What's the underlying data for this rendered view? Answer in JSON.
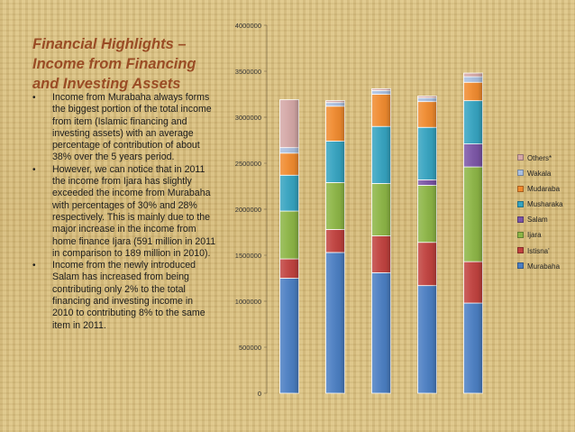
{
  "slide": {
    "title_lines": [
      "Financial Highlights –",
      "Income from Financing",
      "and Investing Assets"
    ],
    "bullets": [
      "Income from Murabaha always forms the biggest portion of the total income from item (Islamic financing and investing assets) with an average percentage of contribution of about 38% over the 5 years period.",
      "However, we can notice that in 2011 the income from Ijara has slightly exceeded the income from Murabaha with percentages of 30% and 28% respectively. This is mainly due to the major increase in the income from home finance Ijara (591 million in 2011 in comparison to 189 million in 2010).",
      "Income from the newly introduced Salam has increased from being contributing only 2% to the total financing and investing income in 2010 to contributing 8% to the same item in 2011."
    ],
    "bullet_symbol": "•"
  },
  "chart_data": {
    "type": "bar",
    "stacked": true,
    "title": "",
    "xlabel": "",
    "ylabel": "",
    "ylim": [
      0,
      4000000
    ],
    "yticks": [
      0,
      500000,
      1000000,
      1500000,
      2000000,
      2500000,
      3000000,
      3500000,
      4000000
    ],
    "ytick_labels": [
      "0",
      "500000",
      "1000000",
      "1500000",
      "2000000",
      "2500000",
      "3000000",
      "3500000",
      "4000000"
    ],
    "categories": [
      "",
      "",
      "",
      "",
      ""
    ],
    "legend_position": "right",
    "series": [
      {
        "name": "Murabaha",
        "color": "#4a7ec2",
        "values": [
          1250000,
          1530000,
          1310000,
          1170000,
          980000
        ]
      },
      {
        "name": "Istisna'",
        "color": "#c0413e",
        "values": [
          210000,
          250000,
          400000,
          470000,
          450000
        ]
      },
      {
        "name": "Ijara",
        "color": "#8cb545",
        "values": [
          520000,
          510000,
          570000,
          620000,
          1030000
        ]
      },
      {
        "name": "Salam",
        "color": "#7b55a6",
        "values": [
          0,
          0,
          0,
          60000,
          250000
        ]
      },
      {
        "name": "Musharaka",
        "color": "#35a3c0",
        "values": [
          390000,
          450000,
          620000,
          570000,
          470000
        ]
      },
      {
        "name": "Mudaraba",
        "color": "#f08a2e",
        "values": [
          240000,
          380000,
          350000,
          280000,
          200000
        ]
      },
      {
        "name": "Wakala",
        "color": "#a9bfe0",
        "values": [
          60000,
          40000,
          40000,
          40000,
          60000
        ]
      },
      {
        "name": "Others*",
        "color": "#d4a7a6",
        "values": [
          520000,
          20000,
          20000,
          20000,
          40000
        ]
      }
    ]
  }
}
